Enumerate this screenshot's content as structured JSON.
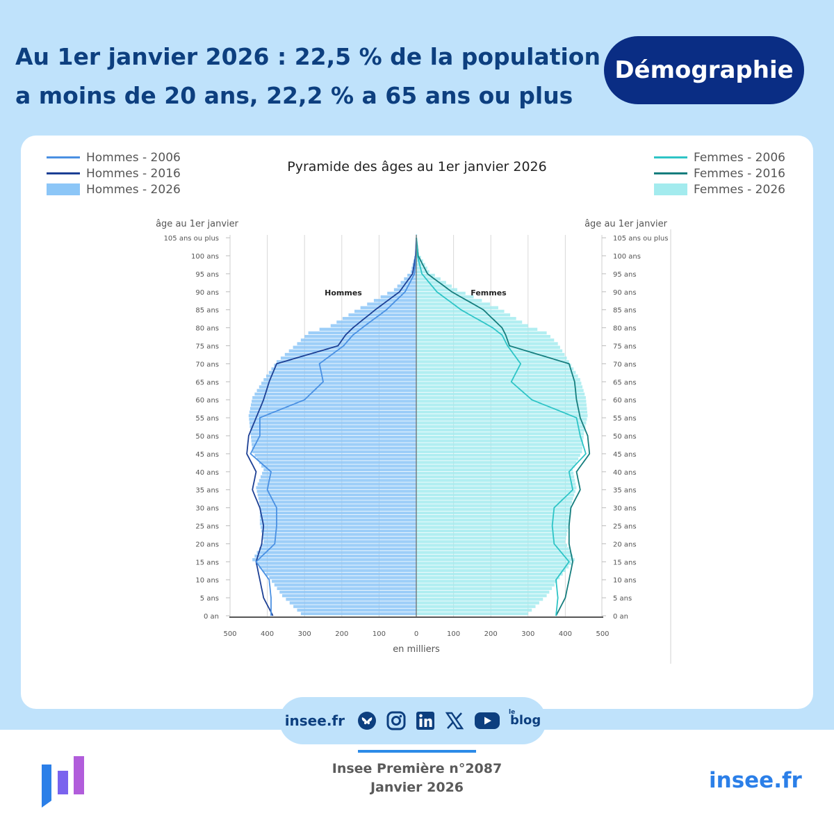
{
  "header": {
    "headline_line1": "Au 1er janvier 2026 : 22,5 % de la population",
    "headline_line2": "a moins de 20 ans, 22,2 % a 65 ans ou plus",
    "topic": "Démographie"
  },
  "legend": {
    "left": [
      "Hommes - 2006",
      "Hommes - 2016",
      "Hommes - 2026"
    ],
    "right": [
      "Femmes - 2006",
      "Femmes - 2016",
      "Femmes - 2026"
    ]
  },
  "colors": {
    "band": "#bfe2fb",
    "navy": "#0a2d84",
    "men_2006": "#4a90e2",
    "men_2016": "#1c3f94",
    "men_2026": "#8cc6f7",
    "women_2006": "#2ec4c6",
    "women_2016": "#157d7d",
    "women_2026": "#a3ebee",
    "accent": "#2b7fe8"
  },
  "chart_data": {
    "type": "bar",
    "title": "Pyramide des âges au 1er janvier 2026",
    "orientation": "population pyramid (horizontal bars, men left, women right)",
    "ylabel": "âge au 1er janvier",
    "xlabel": "en milliers",
    "xlim": [
      0,
      500
    ],
    "x_ticks": [
      "500",
      "400",
      "300",
      "200",
      "100",
      "0",
      "100",
      "200",
      "300",
      "400",
      "500"
    ],
    "age_ticks": [
      {
        "age": 0,
        "label": "0 an"
      },
      {
        "age": 5,
        "label": "5 ans"
      },
      {
        "age": 10,
        "label": "10 ans"
      },
      {
        "age": 15,
        "label": "15 ans"
      },
      {
        "age": 20,
        "label": "20 ans"
      },
      {
        "age": 25,
        "label": "25 ans"
      },
      {
        "age": 30,
        "label": "30 ans"
      },
      {
        "age": 35,
        "label": "35 ans"
      },
      {
        "age": 40,
        "label": "40 ans"
      },
      {
        "age": 45,
        "label": "45 ans"
      },
      {
        "age": 50,
        "label": "50 ans"
      },
      {
        "age": 55,
        "label": "55 ans"
      },
      {
        "age": 60,
        "label": "60 ans"
      },
      {
        "age": 65,
        "label": "65 ans"
      },
      {
        "age": 70,
        "label": "70 ans"
      },
      {
        "age": 75,
        "label": "75 ans"
      },
      {
        "age": 80,
        "label": "80 ans"
      },
      {
        "age": 85,
        "label": "85 ans"
      },
      {
        "age": 90,
        "label": "90 ans"
      },
      {
        "age": 95,
        "label": "95 ans"
      },
      {
        "age": 100,
        "label": "100 ans"
      },
      {
        "age": 105,
        "label": "105 ans ou plus"
      }
    ],
    "annotations": {
      "left": "Hommes",
      "right": "Femmes"
    },
    "key_ages": [
      0,
      5,
      10,
      15,
      20,
      25,
      30,
      35,
      40,
      45,
      50,
      55,
      60,
      65,
      70,
      75,
      78,
      80,
      85,
      90,
      95,
      100,
      105
    ],
    "series": [
      {
        "name": "Hommes - 2026",
        "side": "left",
        "kind": "bar",
        "values": [
          310,
          360,
          395,
          440,
          410,
          420,
          420,
          430,
          410,
          440,
          445,
          450,
          440,
          410,
          375,
          320,
          290,
          230,
          150,
          60,
          15,
          3,
          1
        ]
      },
      {
        "name": "Hommes - 2016",
        "side": "left",
        "kind": "line",
        "values": [
          385,
          410,
          420,
          430,
          415,
          410,
          420,
          440,
          430,
          455,
          450,
          430,
          410,
          395,
          375,
          210,
          190,
          170,
          110,
          45,
          10,
          2,
          0
        ]
      },
      {
        "name": "Hommes - 2006",
        "side": "left",
        "kind": "line",
        "values": [
          390,
          390,
          395,
          430,
          380,
          375,
          375,
          400,
          390,
          445,
          420,
          420,
          300,
          250,
          260,
          195,
          170,
          145,
          80,
          30,
          5,
          1,
          0
        ]
      },
      {
        "name": "Femmes - 2026",
        "side": "right",
        "kind": "bar",
        "values": [
          300,
          350,
          385,
          425,
          400,
          410,
          415,
          430,
          420,
          445,
          450,
          460,
          455,
          440,
          410,
          380,
          350,
          300,
          220,
          110,
          35,
          7,
          2
        ]
      },
      {
        "name": "Femmes - 2016",
        "side": "right",
        "kind": "line",
        "values": [
          375,
          400,
          410,
          420,
          410,
          410,
          415,
          440,
          430,
          465,
          460,
          440,
          430,
          425,
          410,
          250,
          240,
          230,
          180,
          95,
          30,
          5,
          0
        ]
      },
      {
        "name": "Femmes - 2006",
        "side": "right",
        "kind": "line",
        "values": [
          375,
          380,
          375,
          410,
          370,
          365,
          370,
          420,
          410,
          455,
          440,
          430,
          310,
          255,
          280,
          245,
          230,
          205,
          120,
          55,
          15,
          3,
          0
        ]
      }
    ]
  },
  "footer": {
    "social": {
      "site": "insee.fr",
      "icons": [
        "bluesky-icon",
        "instagram-icon",
        "linkedin-icon",
        "x-icon",
        "youtube-icon"
      ],
      "blog_small": "le",
      "blog": "blog"
    },
    "publication": "Insee Première n°2087",
    "date": "Janvier 2026",
    "site": "insee.fr"
  }
}
